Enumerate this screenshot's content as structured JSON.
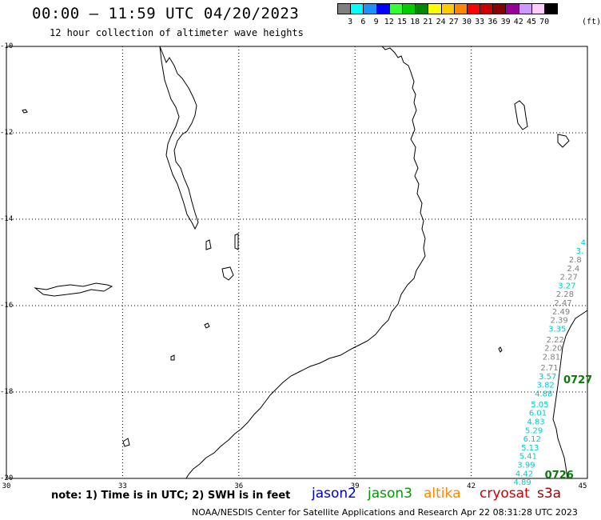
{
  "title": "00:00 – 11:59 UTC 04/20/2023",
  "subtitle": "12 hour collection of altimeter wave heights",
  "legend": {
    "unit": "(ft)",
    "labels": [
      "3",
      "6",
      "9",
      "12",
      "15",
      "18",
      "21",
      "24",
      "27",
      "30",
      "33",
      "36",
      "39",
      "42",
      "45",
      "70"
    ],
    "colors": [
      "#808080",
      "#00ffff",
      "#1e90ff",
      "#0000ff",
      "#33ff33",
      "#00cc00",
      "#008800",
      "#ffff00",
      "#ffcc00",
      "#ff8800",
      "#ff0000",
      "#cc0000",
      "#880000",
      "#990099",
      "#cc99ff",
      "#ffccff",
      "#000000"
    ]
  },
  "map": {
    "lat_labels": [
      "-10",
      "-12",
      "-14",
      "-16",
      "-18",
      "-20"
    ],
    "lon_labels": [
      "30",
      "33",
      "36",
      "39",
      "42",
      "45"
    ]
  },
  "swh_points": [
    {
      "v": "4",
      "lon": 45.0,
      "lat": -14.6,
      "c": "#00cccc"
    },
    {
      "v": "3.",
      "lon": 44.9,
      "lat": -14.8,
      "c": "#00cccc"
    },
    {
      "v": "2.8",
      "lon": 44.85,
      "lat": -15.0,
      "c": "#808080"
    },
    {
      "v": "2.4",
      "lon": 44.8,
      "lat": -15.2,
      "c": "#808080"
    },
    {
      "v": "2.27",
      "lon": 44.75,
      "lat": -15.4,
      "c": "#808080"
    },
    {
      "v": "3.27",
      "lon": 44.7,
      "lat": -15.6,
      "c": "#00cccc"
    },
    {
      "v": "2.28",
      "lon": 44.65,
      "lat": -15.8,
      "c": "#808080"
    },
    {
      "v": "2.47",
      "lon": 44.6,
      "lat": -16.0,
      "c": "#808080"
    },
    {
      "v": "2.49",
      "lon": 44.55,
      "lat": -16.2,
      "c": "#808080"
    },
    {
      "v": "2.39",
      "lon": 44.5,
      "lat": -16.4,
      "c": "#808080"
    },
    {
      "v": "3.35",
      "lon": 44.45,
      "lat": -16.6,
      "c": "#00cccc"
    },
    {
      "v": "2.22",
      "lon": 44.4,
      "lat": -16.85,
      "c": "#808080"
    },
    {
      "v": "2.20",
      "lon": 44.35,
      "lat": -17.05,
      "c": "#808080"
    },
    {
      "v": "2.81",
      "lon": 44.3,
      "lat": -17.25,
      "c": "#808080"
    },
    {
      "v": "2.71",
      "lon": 44.25,
      "lat": -17.5,
      "c": "#808080"
    },
    {
      "v": "3.57",
      "lon": 44.2,
      "lat": -17.7,
      "c": "#00cccc"
    },
    {
      "v": "3.82",
      "lon": 44.15,
      "lat": -17.9,
      "c": "#00cccc"
    },
    {
      "v": "4.88",
      "lon": 44.1,
      "lat": -18.1,
      "c": "#00cccc"
    },
    {
      "v": "5.05",
      "lon": 44.0,
      "lat": -18.35,
      "c": "#00cccc"
    },
    {
      "v": "6.01",
      "lon": 43.95,
      "lat": -18.55,
      "c": "#00cccc"
    },
    {
      "v": "4.83",
      "lon": 43.9,
      "lat": -18.75,
      "c": "#00cccc"
    },
    {
      "v": "5.29",
      "lon": 43.85,
      "lat": -18.95,
      "c": "#00cccc"
    },
    {
      "v": "6.12",
      "lon": 43.8,
      "lat": -19.15,
      "c": "#00cccc"
    },
    {
      "v": "5.13",
      "lon": 43.75,
      "lat": -19.35,
      "c": "#00cccc"
    },
    {
      "v": "5.41",
      "lon": 43.7,
      "lat": -19.55,
      "c": "#00cccc"
    },
    {
      "v": "3.99",
      "lon": 43.65,
      "lat": -19.75,
      "c": "#00cccc"
    },
    {
      "v": "4.42",
      "lon": 43.6,
      "lat": -19.95,
      "c": "#00cccc"
    },
    {
      "v": "4.89",
      "lon": 43.55,
      "lat": -20.15,
      "c": "#00cccc"
    }
  ],
  "pass_labels": [
    {
      "v": "0727",
      "lon": 44.5,
      "lat": -17.8
    },
    {
      "v": "0726",
      "lon": 43.9,
      "lat": -20.0
    }
  ],
  "note": "note: 1) Time is in UTC; 2) SWH is in feet",
  "satellites": [
    {
      "name": "jason2",
      "color": "#0000cc"
    },
    {
      "name": "jason3",
      "color": "#009900"
    },
    {
      "name": "altika",
      "color": "#ff8800"
    },
    {
      "name": "cryosat",
      "color": "#cc0000"
    },
    {
      "name": "s3a",
      "color": "#990000"
    }
  ],
  "credit": "NOAA/NESDIS Center for Satellite Applications and Research   Apr 22 08:31:28 UTC 2023"
}
